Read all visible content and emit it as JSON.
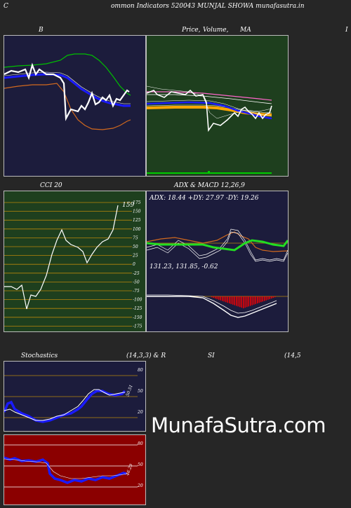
{
  "header": {
    "letter_c": "C",
    "title": "ommon  Indicators 520043 MUNJAL  SHOWA munafasutra.in"
  },
  "panels": {
    "bollinger": {
      "title": "B",
      "bg": "#1c1c3c"
    },
    "price": {
      "title_a": "Price,",
      "title_b": "Volume,",
      "title_c": "MA",
      "bg": "#1e3f1e",
      "right_letter": "I"
    },
    "cci": {
      "title": "CCI 20",
      "bg": "#1e3f1e",
      "value_label": "159",
      "ticks": [
        "175",
        "150",
        "125",
        "100",
        "75",
        "50",
        "25",
        "0",
        "-25",
        "-50",
        "-75",
        "-100",
        "-125",
        "-150",
        "-175"
      ]
    },
    "adx_macd": {
      "title": "ADX  & MACD 12,26,9",
      "adx_text": "ADX: 18.44  +DY: 27.97 -DY: 19.26",
      "macd_text": "131.23,  131.85,  -0.62",
      "bg": "#1c1c3c"
    },
    "stochastics": {
      "title": "Stochastics",
      "params": "(14,3,3) & R",
      "bg": "#1c1c3c",
      "ticks": [
        "80",
        "50",
        "20"
      ],
      "value_label": "50.51"
    },
    "rsi": {
      "title": "SI",
      "params": "(14,5",
      "bg": "#8b0000",
      "ticks": [
        "80",
        "50",
        "20"
      ],
      "value_label": "46.29"
    }
  },
  "watermark": "MunafaSutra.com",
  "colors": {
    "page_bg": "#262626",
    "white_line": "#ffffff",
    "blue_line": "#1a1aff",
    "green_line": "#00c000",
    "orange_line": "#d2691e",
    "bright_green": "#22dd22",
    "macd_red": "#ff0000",
    "grid_orange": "#b8860b"
  }
}
